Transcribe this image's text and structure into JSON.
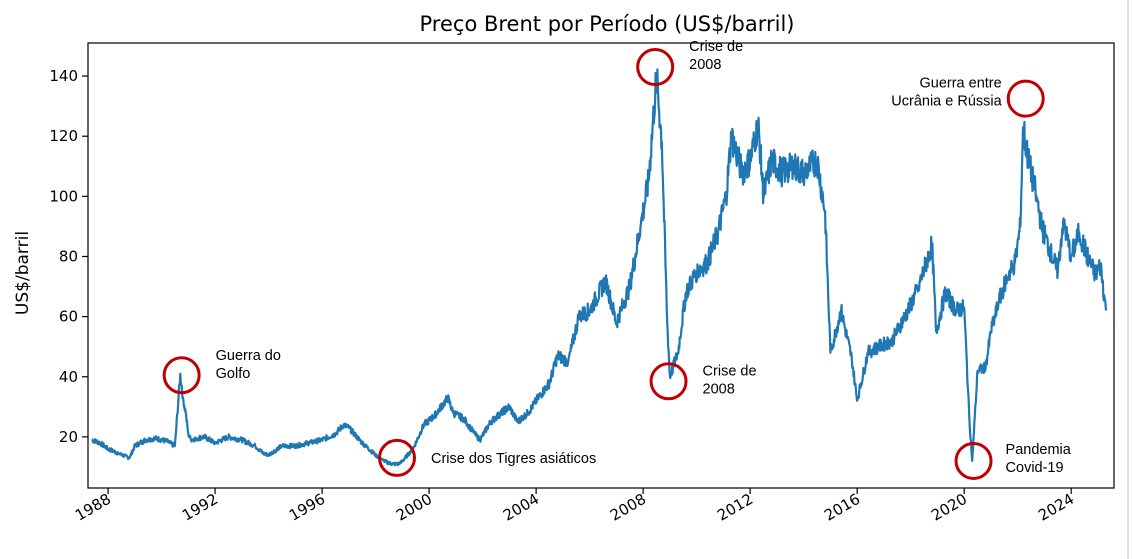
{
  "chart_data": {
    "type": "line",
    "title": "Preço Brent por Período (US$/barril)",
    "xlabel": "",
    "ylabel": "US$/barril",
    "xlim": [
      1987.25,
      2025.6
    ],
    "ylim": [
      3,
      151
    ],
    "x_ticks": [
      1988,
      1992,
      1996,
      2000,
      2004,
      2008,
      2012,
      2016,
      2020,
      2024
    ],
    "x_tick_labels": [
      "1988",
      "1992",
      "1996",
      "2000",
      "2004",
      "2008",
      "2012",
      "2016",
      "2020",
      "2024"
    ],
    "y_ticks": [
      20,
      40,
      60,
      80,
      100,
      120,
      140
    ],
    "y_tick_labels": [
      "20",
      "40",
      "60",
      "80",
      "100",
      "120",
      "140"
    ],
    "grid": false,
    "line_color": "#1f77b4",
    "circle_color": "#c00000",
    "series": [
      {
        "x": [
          1987.4,
          1987.7,
          1988.0,
          1988.4,
          1988.8,
          1989.0,
          1989.4,
          1989.8,
          1990.2,
          1990.5,
          1990.7,
          1990.8,
          1990.9,
          1991.0,
          1991.1,
          1991.3,
          1991.6,
          1992.0,
          1992.5,
          1993.0,
          1993.5,
          1993.8,
          1994.0,
          1994.5,
          1995.0,
          1995.5,
          1996.0,
          1996.5,
          1996.8,
          1997.0,
          1997.5,
          1998.0,
          1998.3,
          1998.6,
          1998.9,
          1999.1,
          1999.4,
          1999.8,
          2000.2,
          2000.7,
          2000.9,
          2001.3,
          2001.7,
          2001.9,
          2002.3,
          2002.7,
          2003.0,
          2003.3,
          2003.7,
          2004.0,
          2004.5,
          2004.8,
          2005.2,
          2005.6,
          2006.0,
          2006.6,
          2007.0,
          2007.5,
          2007.9,
          2008.2,
          2008.5,
          2008.7,
          2008.9,
          2009.0,
          2009.3,
          2009.6,
          2010.0,
          2010.4,
          2010.8,
          2011.1,
          2011.3,
          2011.7,
          2012.0,
          2012.3,
          2012.5,
          2012.8,
          2013.2,
          2013.6,
          2014.0,
          2014.5,
          2014.8,
          2015.0,
          2015.4,
          2015.8,
          2016.0,
          2016.4,
          2016.8,
          2017.3,
          2017.9,
          2018.3,
          2018.8,
          2018.95,
          2019.3,
          2019.7,
          2020.0,
          2020.2,
          2020.3,
          2020.5,
          2020.8,
          2021.0,
          2021.3,
          2021.6,
          2021.9,
          2022.1,
          2022.2,
          2022.4,
          2022.7,
          2022.9,
          2023.2,
          2023.5,
          2023.7,
          2024.0,
          2024.3,
          2024.6,
          2024.9,
          2025.1,
          2025.3
        ],
        "values": [
          19,
          18,
          16,
          14.5,
          13,
          17,
          19,
          19.5,
          18.5,
          17,
          41,
          33,
          28,
          21,
          19,
          19.5,
          20,
          18,
          20,
          19,
          17,
          14.5,
          14,
          17,
          17,
          18,
          19,
          21,
          24,
          23,
          18,
          14,
          12,
          11,
          11,
          13,
          16,
          24,
          27,
          33,
          28,
          26,
          21,
          19,
          25,
          28,
          30,
          25,
          28,
          32,
          38,
          47,
          45,
          60,
          62,
          72,
          58,
          70,
          90,
          105,
          140,
          118,
          58,
          40,
          48,
          68,
          75,
          78,
          88,
          100,
          120,
          108,
          112,
          124,
          100,
          112,
          108,
          110,
          108,
          112,
          95,
          48,
          62,
          46,
          32,
          48,
          50,
          52,
          62,
          70,
          84,
          55,
          68,
          62,
          63,
          25,
          12,
          42,
          43,
          55,
          65,
          73,
          78,
          90,
          123,
          112,
          100,
          90,
          82,
          75,
          92,
          80,
          88,
          80,
          74,
          77,
          62
        ]
      }
    ],
    "annotations": [
      {
        "lines": [
          "Guerra do",
          "Golfo"
        ],
        "x": 1990.75,
        "y": 40.5
      },
      {
        "lines": [
          "Crise dos Tigres asiáticos"
        ],
        "x": 1998.8,
        "y": 13
      },
      {
        "lines": [
          "Crise de",
          "2008"
        ],
        "x": 2008.45,
        "y": 143
      },
      {
        "lines": [
          "Crise de",
          "2008"
        ],
        "x": 2008.95,
        "y": 38.5
      },
      {
        "lines": [
          "Guerra entre",
          "Ucrânia e Rússia"
        ],
        "x": 2022.3,
        "y": 132.5
      },
      {
        "lines": [
          "Pandemia",
          "Covid-19"
        ],
        "x": 2020.35,
        "y": 12
      }
    ]
  }
}
